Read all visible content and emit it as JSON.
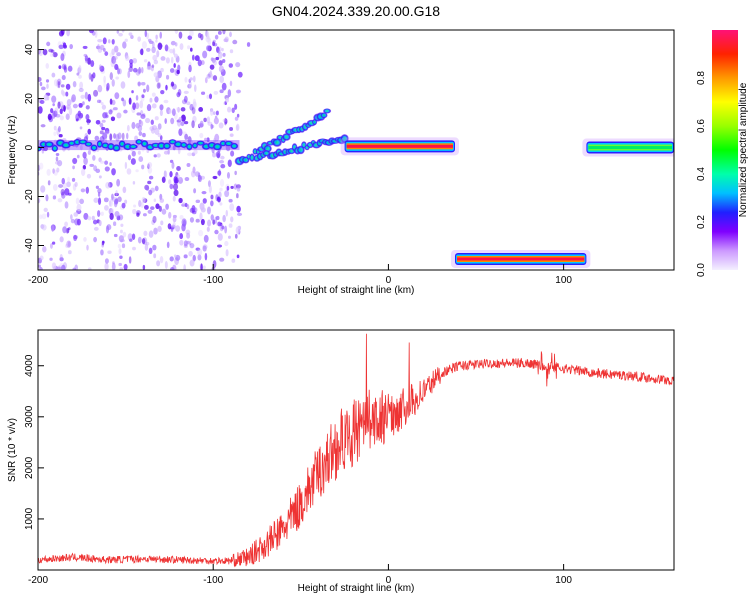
{
  "title": "GN04.2024.339.20.00.G18",
  "chart_data": [
    {
      "type": "heatmap",
      "xlabel": "Height of straight line (km)",
      "ylabel": "Frequency (Hz)",
      "xlim": [
        -200,
        163
      ],
      "ylim": [
        -50,
        48
      ],
      "xticks": [
        -200,
        -100,
        0,
        100
      ],
      "yticks": [
        -40,
        -20,
        0,
        20,
        40
      ],
      "colorbar": {
        "label": "Normalized spectral amplitude",
        "range": [
          0,
          1
        ],
        "ticks": [
          "0.0",
          "0.2",
          "0.4",
          "0.6",
          "0.8"
        ]
      },
      "features": [
        {
          "name": "scattered noise",
          "x": [
            -200,
            -85
          ],
          "y": [
            -50,
            48
          ]
        },
        {
          "name": "dotted trace",
          "x": [
            -200,
            -85
          ],
          "y_center": 1.0
        },
        {
          "name": "rising streak",
          "x": [
            -85,
            -35
          ],
          "y_start": -6,
          "y_end": 14
        },
        {
          "name": "falling streak",
          "x": [
            -75,
            -25
          ],
          "y_start": -4,
          "y_end": 4
        },
        {
          "name": "solid band",
          "x": [
            -25,
            38
          ],
          "y_center": 0.5,
          "peak_amplitude": 1.0
        },
        {
          "name": "solid band",
          "x": [
            38,
            113
          ],
          "y_center": -45.5,
          "peak_amplitude": 0.95
        },
        {
          "name": "solid band",
          "x": [
            113,
            163
          ],
          "y_center": 0,
          "peak_amplitude": 0.4
        }
      ],
      "grid": false
    },
    {
      "type": "line",
      "xlabel": "Height of straight line (km)",
      "ylabel": "SNR (10 * v/v)",
      "xlim": [
        -200,
        163
      ],
      "ylim": [
        0,
        4700
      ],
      "xticks": [
        -200,
        -100,
        0,
        100
      ],
      "yticks": [
        1000,
        2000,
        3000,
        4000
      ],
      "color": "#ee3333",
      "series": [
        {
          "x": [
            -200,
            -180,
            -160,
            -140,
            -120,
            -100,
            -90,
            -80,
            -70,
            -60,
            -50,
            -40,
            -30,
            -20,
            -10,
            0,
            10,
            20,
            30,
            40,
            60,
            80,
            90,
            100,
            120,
            140,
            163
          ],
          "values": [
            200,
            250,
            200,
            220,
            200,
            180,
            180,
            250,
            500,
            800,
            1300,
            1900,
            2400,
            2700,
            2800,
            3000,
            3200,
            3500,
            3850,
            4000,
            4050,
            4050,
            4000,
            3950,
            3850,
            3800,
            3700
          ]
        }
      ],
      "grid": false
    }
  ]
}
